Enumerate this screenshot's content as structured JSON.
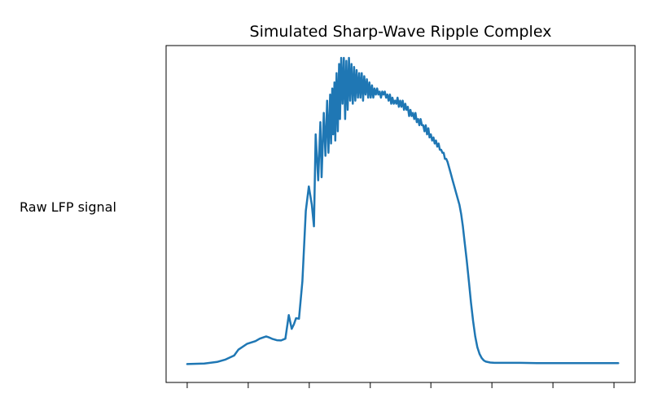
{
  "chart_data": {
    "type": "line",
    "title": "Simulated Sharp-Wave Ripple Complex",
    "xlabel": "",
    "ylabel": "Raw LFP signal",
    "xlim": [
      -0.05,
      0.05
    ],
    "ylim": [
      -0.06,
      1.04
    ],
    "x_ticks": [
      -0.05,
      -0.0357,
      -0.0214,
      -0.0071,
      0.0071,
      0.0214,
      0.0357,
      0.05
    ],
    "x_ticklabels_visible": false,
    "y_ticks_visible": false,
    "grid": false,
    "legend": "none",
    "series": [
      {
        "color": "#1f77b4",
        "x": [
          -0.05,
          -0.046,
          -0.043,
          -0.041,
          -0.039,
          -0.038,
          -0.036,
          -0.034,
          -0.033,
          -0.032,
          -0.0315,
          -0.031,
          -0.0305,
          -0.03,
          -0.0295,
          -0.029,
          -0.028,
          -0.027,
          -0.0262,
          -0.0255,
          -0.025,
          -0.0245,
          -0.0238,
          -0.023,
          -0.0222,
          -0.0215,
          -0.0208,
          -0.0203,
          -0.0199,
          -0.0193,
          -0.0188,
          -0.0185,
          -0.018,
          -0.0176,
          -0.0172,
          -0.0169,
          -0.0165,
          -0.0163,
          -0.016,
          -0.0158,
          -0.0155,
          -0.0153,
          -0.015,
          -0.0147,
          -0.0144,
          -0.0142,
          -0.0139,
          -0.0136,
          -0.0133,
          -0.013,
          -0.0127,
          -0.0124,
          -0.0121,
          -0.0118,
          -0.0115,
          -0.0112,
          -0.0109,
          -0.0106,
          -0.0103,
          -0.01,
          -0.0097,
          -0.0094,
          -0.0091,
          -0.0088,
          -0.0085,
          -0.0082,
          -0.0079,
          -0.0076,
          -0.0073,
          -0.007,
          -0.0067,
          -0.0064,
          -0.0061,
          -0.0058,
          -0.0055,
          -0.0052,
          -0.0049,
          -0.0046,
          -0.0043,
          -0.004,
          -0.0037,
          -0.0034,
          -0.0031,
          -0.0028,
          -0.0025,
          -0.0022,
          -0.0019,
          -0.0016,
          -0.0013,
          -0.001,
          -0.0007,
          -0.0004,
          -0.0001,
          0.0002,
          0.0005,
          0.0008,
          0.0011,
          0.0014,
          0.0017,
          0.002,
          0.0023,
          0.0026,
          0.0029,
          0.0032,
          0.0035,
          0.0038,
          0.0041,
          0.0044,
          0.0047,
          0.005,
          0.0053,
          0.0056,
          0.0059,
          0.0062,
          0.0065,
          0.0068,
          0.0071,
          0.0074,
          0.0077,
          0.008,
          0.0083,
          0.0086,
          0.0089,
          0.0092,
          0.0095,
          0.0098,
          0.0101,
          0.0104,
          0.0107,
          0.011,
          0.0114,
          0.0118,
          0.0122,
          0.0126,
          0.013,
          0.0134,
          0.0138,
          0.0142,
          0.0146,
          0.015,
          0.0155,
          0.016,
          0.0165,
          0.017,
          0.0175,
          0.018,
          0.0185,
          0.019,
          0.0195,
          0.02,
          0.021,
          0.022,
          0.023,
          0.025,
          0.028,
          0.032,
          0.036,
          0.04,
          0.044,
          0.048,
          0.051
        ],
        "y": [
          0.0,
          0.002,
          0.007,
          0.015,
          0.028,
          0.047,
          0.066,
          0.075,
          0.083,
          0.088,
          0.09,
          0.088,
          0.085,
          0.082,
          0.08,
          0.078,
          0.077,
          0.083,
          0.16,
          0.115,
          0.13,
          0.15,
          0.148,
          0.27,
          0.5,
          0.58,
          0.52,
          0.45,
          0.75,
          0.6,
          0.79,
          0.61,
          0.82,
          0.68,
          0.86,
          0.69,
          0.88,
          0.72,
          0.9,
          0.75,
          0.92,
          0.73,
          0.95,
          0.76,
          0.98,
          0.8,
          1.0,
          0.85,
          1.0,
          0.8,
          0.99,
          0.83,
          1.0,
          0.86,
          0.98,
          0.85,
          0.97,
          0.86,
          0.96,
          0.87,
          0.95,
          0.87,
          0.95,
          0.86,
          0.94,
          0.88,
          0.93,
          0.87,
          0.92,
          0.87,
          0.91,
          0.87,
          0.9,
          0.88,
          0.9,
          0.88,
          0.89,
          0.87,
          0.89,
          0.88,
          0.89,
          0.87,
          0.88,
          0.86,
          0.88,
          0.85,
          0.87,
          0.85,
          0.86,
          0.85,
          0.87,
          0.84,
          0.86,
          0.84,
          0.86,
          0.83,
          0.85,
          0.83,
          0.84,
          0.81,
          0.83,
          0.81,
          0.82,
          0.8,
          0.82,
          0.79,
          0.8,
          0.78,
          0.8,
          0.78,
          0.78,
          0.76,
          0.78,
          0.75,
          0.77,
          0.74,
          0.75,
          0.73,
          0.74,
          0.72,
          0.73,
          0.71,
          0.72,
          0.7,
          0.7,
          0.69,
          0.69,
          0.67,
          0.67,
          0.66,
          0.64,
          0.62,
          0.6,
          0.58,
          0.56,
          0.54,
          0.52,
          0.49,
          0.45,
          0.4,
          0.34,
          0.27,
          0.2,
          0.14,
          0.09,
          0.055,
          0.033,
          0.02,
          0.012,
          0.008,
          0.005,
          0.004,
          0.004,
          0.004,
          0.004,
          0.003,
          0.003,
          0.003,
          0.003,
          0.003,
          0.003
        ]
      }
    ]
  }
}
